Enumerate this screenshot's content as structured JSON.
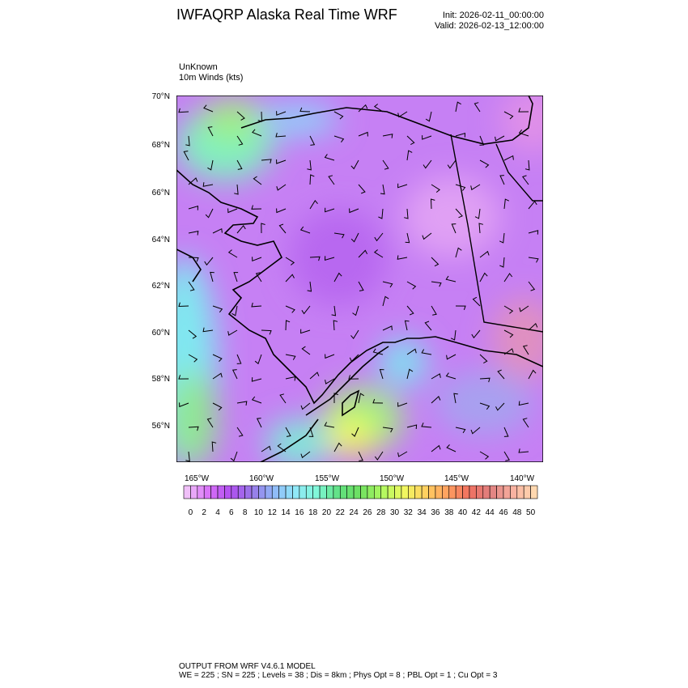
{
  "header": {
    "title": "IWFAQRP Alaska Real Time WRF",
    "init": "Init: 2026-02-11_00:00:00",
    "valid": "Valid: 2026-02-13_12:00:00"
  },
  "subtitle": {
    "line1": "UnKnown",
    "line2": "10m Winds   (kts)"
  },
  "map": {
    "region": "Alaska",
    "lat_labels": [
      "70°N",
      "68°N",
      "66°N",
      "64°N",
      "62°N",
      "60°N",
      "58°N",
      "56°N"
    ],
    "lon_labels": [
      "165°W",
      "160°W",
      "155°W",
      "150°W",
      "145°W",
      "140°W"
    ],
    "field": "10m wind speed",
    "overlay": "wind barbs"
  },
  "colorbar": {
    "labels": [
      "0",
      "2",
      "4",
      "6",
      "8",
      "10",
      "12",
      "14",
      "16",
      "18",
      "20",
      "22",
      "24",
      "26",
      "28",
      "30",
      "32",
      "34",
      "36",
      "38",
      "40",
      "42",
      "44",
      "46",
      "48",
      "50"
    ],
    "stops": [
      "#f0c0f8",
      "#d870f8",
      "#b050f0",
      "#9878e8",
      "#90b8f8",
      "#90e8f8",
      "#80f8d8",
      "#60e080",
      "#70e060",
      "#b0f860",
      "#f0f860",
      "#ffd060",
      "#ffa060",
      "#f07060",
      "#e08080",
      "#f8b0a0",
      "#ffd8b0"
    ]
  },
  "footer": {
    "line1": "OUTPUT FROM WRF V4.6.1 MODEL",
    "line2": "WE = 225 ; SN = 225 ; Levels = 38 ; Dis = 8km ; Phys Opt = 8 ; PBL Opt = 1 ; Cu Opt = 3"
  }
}
